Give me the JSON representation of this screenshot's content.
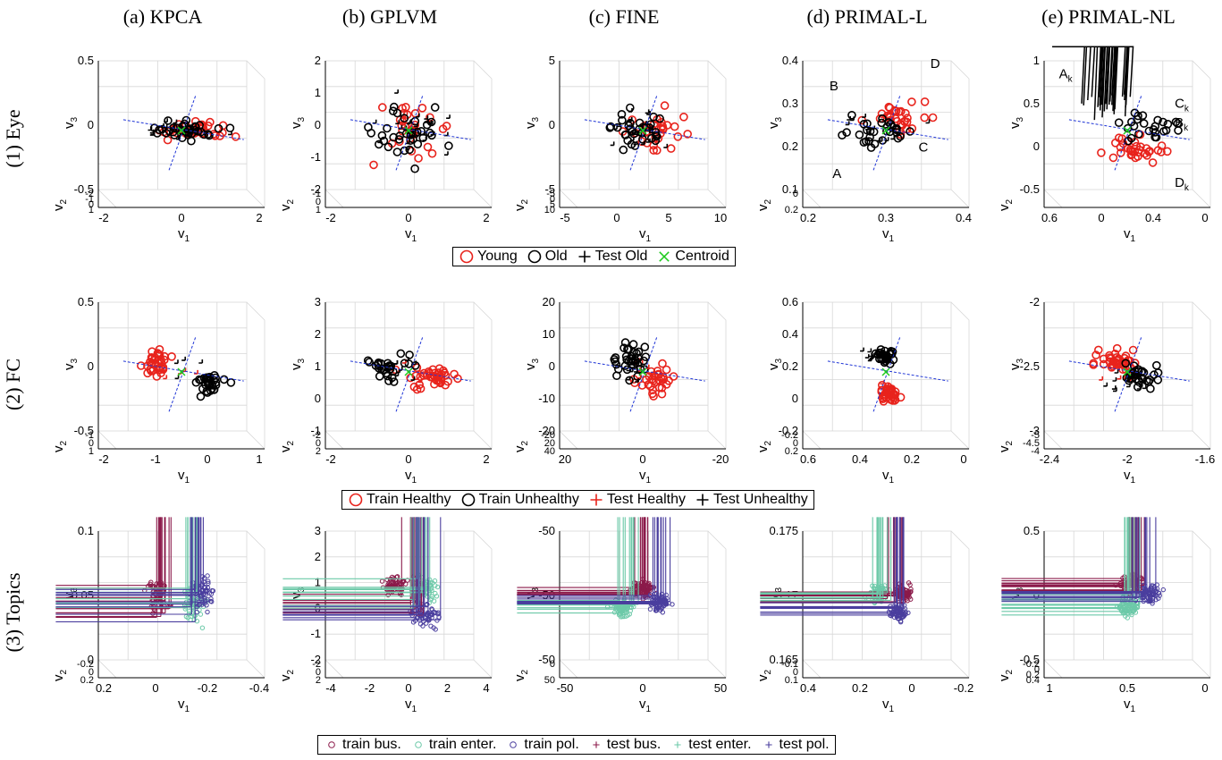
{
  "columns": [
    "(a) KPCA",
    "(b) GPLVM",
    "(c) FINE",
    "(d) PRIMAL-L",
    "(e) PRIMAL-NL"
  ],
  "rows": [
    "(1) Eye",
    "(2) FC",
    "(3) Topics"
  ],
  "legends": [
    {
      "entries": [
        {
          "label": "Young",
          "marker": "circle",
          "color": "#e8231c"
        },
        {
          "label": "Old",
          "marker": "circle",
          "color": "#000000"
        },
        {
          "label": "Test Old",
          "marker": "plus",
          "color": "#000000"
        },
        {
          "label": "Centroid",
          "marker": "x",
          "color": "#1ecb1e"
        }
      ]
    },
    {
      "entries": [
        {
          "label": "Train Healthy",
          "marker": "circle",
          "color": "#e8231c"
        },
        {
          "label": "Train Unhealthy",
          "marker": "circle",
          "color": "#000000"
        },
        {
          "label": "Test Healthy",
          "marker": "plus",
          "color": "#e8231c"
        },
        {
          "label": "Test Unhealthy",
          "marker": "plus",
          "color": "#000000"
        }
      ]
    },
    {
      "entries": [
        {
          "label": "train bus.",
          "marker": "circle-small",
          "color": "#8b1a4a"
        },
        {
          "label": "train enter.",
          "marker": "circle-small",
          "color": "#6cc9a8"
        },
        {
          "label": "train pol.",
          "marker": "circle-small",
          "color": "#4a3e9e"
        },
        {
          "label": "test bus.",
          "marker": "plus-small",
          "color": "#8b1a4a"
        },
        {
          "label": "test enter.",
          "marker": "plus-small",
          "color": "#6cc9a8"
        },
        {
          "label": "test pol.",
          "marker": "plus-small",
          "color": "#4a3e9e"
        }
      ]
    }
  ],
  "chart_data": [
    {
      "type": "scatter",
      "row": 0,
      "col": 0,
      "projection": "3d",
      "seed": 11,
      "groups": [
        [
          "#e8231c",
          "circle",
          38,
          0.4,
          0
        ],
        [
          "#000000",
          "circle",
          35,
          0.0,
          0
        ],
        [
          "#000000",
          "plus",
          20,
          0.0,
          0
        ]
      ],
      "spread": [
        1.3,
        0.6,
        0.35
      ],
      "xlabel": "v1",
      "ylabel": "v2",
      "zlabel": "v3",
      "xticks": [
        "-2",
        "0",
        "2"
      ],
      "yticks": [
        "-2",
        "-1",
        "0",
        "1"
      ],
      "zticks": [
        "-0.5",
        "0",
        "0.5"
      ],
      "annotations": []
    },
    {
      "type": "scatter",
      "row": 0,
      "col": 1,
      "projection": "3d",
      "seed": 23,
      "groups": [
        [
          "#e8231c",
          "circle",
          30,
          0.1,
          0
        ],
        [
          "#000000",
          "circle",
          35,
          0.0,
          0
        ],
        [
          "#000000",
          "plus",
          22,
          0.2,
          0
        ]
      ],
      "spread": [
        1.3,
        0.6,
        1.2
      ],
      "xlabel": "v1",
      "ylabel": "v2",
      "zlabel": "v3",
      "xticks": [
        "-2",
        "0",
        "2"
      ],
      "yticks": [
        "-1",
        "0",
        "1"
      ],
      "zticks": [
        "-2",
        "-1",
        "0",
        "1",
        "2"
      ],
      "annotations": []
    },
    {
      "type": "scatter",
      "row": 0,
      "col": 2,
      "projection": "3d",
      "seed": 37,
      "groups": [
        [
          "#e8231c",
          "circle",
          30,
          0.3,
          0
        ],
        [
          "#000000",
          "circle",
          32,
          -0.1,
          0
        ],
        [
          "#000000",
          "plus",
          20,
          0.0,
          0
        ]
      ],
      "spread": [
        1.0,
        0.8,
        0.8
      ],
      "xlabel": "v1",
      "ylabel": "v2",
      "zlabel": "v3",
      "xticks": [
        "-5",
        "0",
        "5",
        "10"
      ],
      "yticks": [
        "-5",
        "0",
        "5",
        "10"
      ],
      "zticks": [
        "-5",
        "0",
        "5"
      ],
      "annotations": []
    },
    {
      "type": "scatter",
      "row": 0,
      "col": 3,
      "projection": "3d",
      "seed": 41,
      "groups": [
        [
          "#e8231c",
          "circle",
          30,
          0.3,
          0.3
        ],
        [
          "#000000",
          "circle",
          30,
          -0.2,
          -0.1
        ],
        [
          "#000000",
          "plus",
          14,
          0.0,
          0.0
        ]
      ],
      "spread": [
        1.1,
        0.4,
        0.6
      ],
      "xlabel": "v1",
      "ylabel": "v2",
      "zlabel": "v3",
      "xticks": [
        "0.2",
        "0.3",
        "0.4"
      ],
      "yticks": [
        "0",
        "0.2"
      ],
      "zticks": [
        "0.1",
        "0.2",
        "0.3",
        "0.4"
      ],
      "annotations": [
        "A",
        "B",
        "C",
        "D"
      ]
    },
    {
      "type": "scatter",
      "row": 0,
      "col": 4,
      "projection": "3d",
      "seed": 53,
      "groups": [
        [
          "#e8231c",
          "circle",
          34,
          0.2,
          -0.5
        ],
        [
          "#000000",
          "circle",
          26,
          0.5,
          0.1
        ],
        [
          "#000000",
          "x",
          30,
          -0.4,
          0.6
        ]
      ],
      "spread": [
        1.2,
        0.4,
        0.5
      ],
      "xlabel": "v1",
      "ylabel": "v2",
      "zlabel": "v3",
      "xticks": [
        "0.6",
        "0",
        "0.4",
        "0"
      ],
      "yticks": [],
      "zticks": [
        "-0.5",
        "0",
        "0.5",
        "1"
      ],
      "annotations": [
        "Ak",
        "Bk",
        "Ck",
        "Dk"
      ]
    },
    {
      "type": "scatter",
      "row": 1,
      "col": 0,
      "projection": "3d",
      "seed": 61,
      "groups": [
        [
          "#e8231c",
          "circle",
          34,
          -0.6,
          0.2
        ],
        [
          "#000000",
          "circle",
          30,
          0.7,
          -0.3
        ],
        [
          "#e8231c",
          "plus",
          4,
          0.0,
          0
        ],
        [
          "#000000",
          "plus",
          4,
          0.2,
          0
        ]
      ],
      "spread": [
        0.5,
        0.5,
        0.5
      ],
      "xlabel": "v1",
      "ylabel": "v2",
      "zlabel": "v3",
      "xticks": [
        "-2",
        "-1",
        "0",
        "1"
      ],
      "yticks": [
        "-1",
        "0",
        "1"
      ],
      "zticks": [
        "-0.5",
        "0",
        "0.5"
      ],
      "annotations": []
    },
    {
      "type": "scatter",
      "row": 1,
      "col": 1,
      "projection": "3d",
      "seed": 71,
      "groups": [
        [
          "#e8231c",
          "circle",
          40,
          0.6,
          -0.1
        ],
        [
          "#000000",
          "circle",
          28,
          -0.5,
          0.1
        ],
        [
          "#e8231c",
          "plus",
          3,
          0.1,
          0
        ],
        [
          "#000000",
          "plus",
          10,
          -0.2,
          0.1
        ]
      ],
      "spread": [
        0.8,
        0.5,
        0.5
      ],
      "xlabel": "v1",
      "ylabel": "v2",
      "zlabel": "v3",
      "xticks": [
        "-2",
        "0",
        "2"
      ],
      "yticks": [
        "-2",
        "0",
        "2"
      ],
      "zticks": [
        "-1",
        "0",
        "1",
        "2",
        "3"
      ],
      "annotations": []
    },
    {
      "type": "scatter",
      "row": 1,
      "col": 2,
      "projection": "3d",
      "seed": 83,
      "groups": [
        [
          "#e8231c",
          "circle",
          32,
          0.3,
          -0.2
        ],
        [
          "#000000",
          "circle",
          34,
          -0.3,
          0.3
        ],
        [
          "#e8231c",
          "plus",
          4,
          0.2,
          0
        ],
        [
          "#000000",
          "plus",
          10,
          -0.1,
          0
        ]
      ],
      "spread": [
        0.7,
        0.6,
        0.7
      ],
      "xlabel": "v1",
      "ylabel": "v2",
      "zlabel": "v3",
      "xticks": [
        "20",
        "0",
        "-20"
      ],
      "yticks": [
        "-20",
        "20",
        "40"
      ],
      "zticks": [
        "-20",
        "-10",
        "0",
        "10",
        "20"
      ],
      "annotations": []
    },
    {
      "type": "scatter",
      "row": 1,
      "col": 3,
      "projection": "3d",
      "seed": 97,
      "groups": [
        [
          "#e8231c",
          "circle",
          36,
          0.1,
          -0.6
        ],
        [
          "#000000",
          "circle",
          28,
          0.0,
          0.4
        ],
        [
          "#e8231c",
          "plus",
          3,
          0.1,
          -0.3
        ],
        [
          "#000000",
          "plus",
          10,
          -0.3,
          0.4
        ]
      ],
      "spread": [
        0.3,
        0.5,
        0.35
      ],
      "xlabel": "v1",
      "ylabel": "v2",
      "zlabel": "v3",
      "xticks": [
        "0.6",
        "0.4",
        "0.2",
        "0"
      ],
      "yticks": [
        "-0.2",
        "0",
        "0.2"
      ],
      "zticks": [
        "-0.2",
        "0",
        "0.2",
        "0.4",
        "0.6"
      ],
      "annotations": []
    },
    {
      "type": "scatter",
      "row": 1,
      "col": 4,
      "projection": "3d",
      "seed": 101,
      "groups": [
        [
          "#e8231c",
          "circle",
          42,
          -0.2,
          0.3
        ],
        [
          "#000000",
          "circle",
          30,
          0.3,
          -0.1
        ],
        [
          "#e8231c",
          "plus",
          3,
          -0.2,
          0
        ],
        [
          "#000000",
          "plus",
          10,
          -0.1,
          -0.3
        ]
      ],
      "spread": [
        0.7,
        0.6,
        0.6
      ],
      "xlabel": "v1",
      "ylabel": "v2",
      "zlabel": "v3",
      "xticks": [
        "-2.4",
        "-2",
        "-1.6"
      ],
      "yticks": [
        "-5",
        "-4.5",
        "-4"
      ],
      "zticks": [
        "-3",
        "-2.5",
        "-2"
      ],
      "annotations": []
    },
    {
      "type": "scatter",
      "row": 2,
      "col": 0,
      "projection": "3d",
      "seed": 113,
      "groups": [
        [
          "#8b1a4a",
          "circle-small",
          60,
          -0.6,
          0.1
        ],
        [
          "#6cc9a8",
          "circle-small",
          55,
          0.3,
          -0.2
        ],
        [
          "#4a3e9e",
          "circle-small",
          55,
          0.5,
          0.2
        ],
        [
          "#8b1a4a",
          "plus-small",
          12,
          -0.5,
          0
        ],
        [
          "#6cc9a8",
          "plus-small",
          10,
          0.2,
          0
        ],
        [
          "#4a3e9e",
          "plus-small",
          10,
          0.4,
          0
        ]
      ],
      "spread": [
        0.35,
        0.4,
        0.7
      ],
      "xlabel": "v1",
      "ylabel": "v2",
      "zlabel": "v3",
      "xticks": [
        "0.2",
        "0",
        "-0.2",
        "-0.4"
      ],
      "yticks": [
        "-0.2",
        "0",
        "0.2"
      ],
      "zticks": [
        "0",
        "0.05",
        "0.1"
      ],
      "annotations": []
    },
    {
      "type": "scatter",
      "row": 2,
      "col": 1,
      "projection": "3d",
      "seed": 127,
      "groups": [
        [
          "#8b1a4a",
          "circle-small",
          70,
          -0.3,
          0.4
        ],
        [
          "#6cc9a8",
          "circle-small",
          60,
          0.4,
          0.3
        ],
        [
          "#4a3e9e",
          "circle-small",
          60,
          0.4,
          -0.4
        ],
        [
          "#8b1a4a",
          "plus-small",
          12,
          0.2,
          -0.1
        ],
        [
          "#6cc9a8",
          "plus-small",
          10,
          0.3,
          0.2
        ],
        [
          "#4a3e9e",
          "plus-small",
          10,
          0.4,
          -0.3
        ]
      ],
      "spread": [
        0.45,
        0.4,
        0.45
      ],
      "xlabel": "v1",
      "ylabel": "v2",
      "zlabel": "v3",
      "xticks": [
        "-4",
        "-2",
        "0",
        "2",
        "4"
      ],
      "yticks": [
        "-2",
        "0",
        "2"
      ],
      "zticks": [
        "-2",
        "-1",
        "0",
        "1",
        "2",
        "3"
      ],
      "annotations": []
    },
    {
      "type": "scatter",
      "row": 2,
      "col": 2,
      "projection": "3d",
      "seed": 131,
      "groups": [
        [
          "#8b1a4a",
          "circle-small",
          80,
          0.0,
          0.3
        ],
        [
          "#6cc9a8",
          "circle-small",
          75,
          -0.5,
          -0.2
        ],
        [
          "#4a3e9e",
          "circle-small",
          70,
          0.4,
          -0.05
        ],
        [
          "#8b1a4a",
          "plus-small",
          12,
          0.0,
          0.2
        ],
        [
          "#6cc9a8",
          "plus-small",
          10,
          -0.4,
          -0.1
        ],
        [
          "#4a3e9e",
          "plus-small",
          10,
          0.4,
          0
        ]
      ],
      "spread": [
        0.35,
        0.3,
        0.3
      ],
      "xlabel": "v1",
      "ylabel": "v2",
      "zlabel": "v3",
      "xticks": [
        "-50",
        "0",
        "50"
      ],
      "yticks": [
        "0",
        "50"
      ],
      "zticks": [
        "-50",
        "-50",
        "-50"
      ],
      "annotations": []
    },
    {
      "type": "scatter",
      "row": 2,
      "col": 3,
      "projection": "3d",
      "seed": 149,
      "groups": [
        [
          "#8b1a4a",
          "circle-small",
          80,
          0.4,
          0.2
        ],
        [
          "#6cc9a8",
          "circle-small",
          75,
          -0.2,
          0.2
        ],
        [
          "#4a3e9e",
          "circle-small",
          70,
          0.3,
          -0.35
        ],
        [
          "#8b1a4a",
          "plus-small",
          12,
          0.3,
          0.1
        ],
        [
          "#6cc9a8",
          "plus-small",
          10,
          -0.1,
          0.1
        ],
        [
          "#4a3e9e",
          "plus-small",
          10,
          0.3,
          -0.2
        ]
      ],
      "spread": [
        0.3,
        0.3,
        0.3
      ],
      "xlabel": "v1",
      "ylabel": "v2",
      "zlabel": "v3",
      "xticks": [
        "0.4",
        "0.2",
        "0",
        "-0.2"
      ],
      "yticks": [
        "-0.1",
        "0",
        "0.1"
      ],
      "zticks": [
        "0.165",
        "0.17",
        "0.175"
      ],
      "annotations": []
    },
    {
      "type": "scatter",
      "row": 2,
      "col": 4,
      "projection": "3d",
      "seed": 157,
      "groups": [
        [
          "#8b1a4a",
          "circle-small",
          75,
          0.1,
          0.5
        ],
        [
          "#6cc9a8",
          "circle-small",
          70,
          0.0,
          -0.2
        ],
        [
          "#4a3e9e",
          "circle-small",
          70,
          0.5,
          0.2
        ],
        [
          "#8b1a4a",
          "plus-small",
          12,
          0.2,
          0.4
        ],
        [
          "#6cc9a8",
          "plus-small",
          10,
          0.0,
          -0.1
        ],
        [
          "#4a3e9e",
          "plus-small",
          10,
          0.4,
          0.1
        ]
      ],
      "spread": [
        0.4,
        0.3,
        0.35
      ],
      "xlabel": "v1",
      "ylabel": "v2",
      "zlabel": "v3",
      "xticks": [
        "1",
        "0.5",
        "0"
      ],
      "yticks": [
        "-0.2",
        "0",
        "0.2",
        "0.4"
      ],
      "zticks": [
        "-0.5",
        "0",
        "0.5"
      ],
      "annotations": []
    }
  ]
}
